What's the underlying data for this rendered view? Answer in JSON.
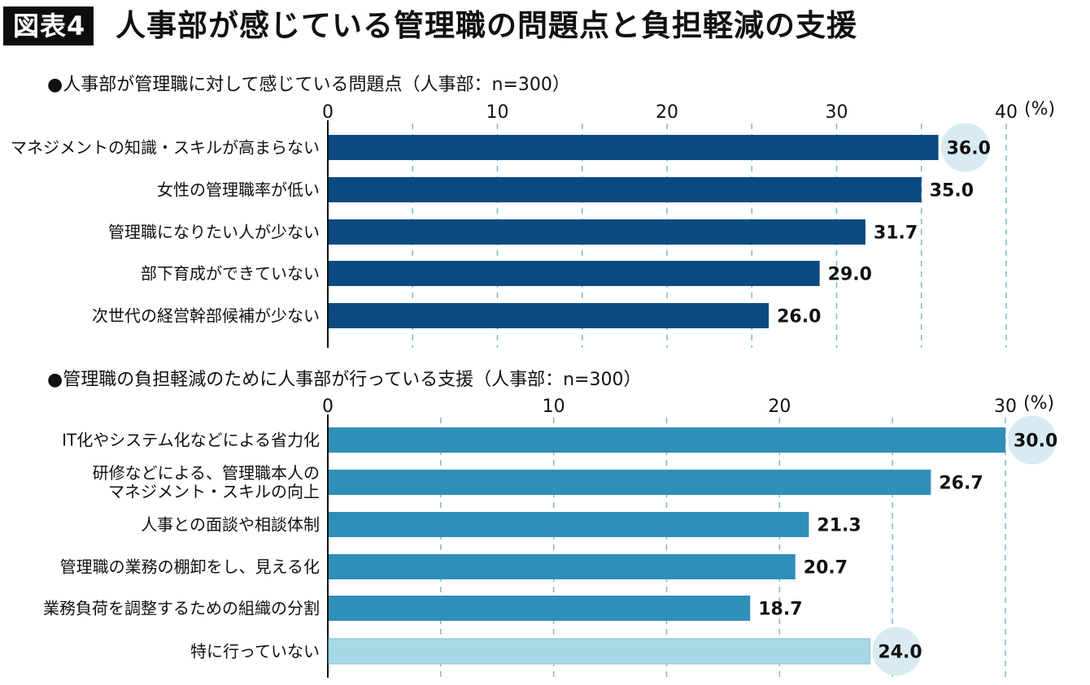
{
  "header": {
    "badge": "図表4",
    "title": "人事部が感じている管理職の問題点と負担軽減の支援"
  },
  "chart_data": [
    {
      "type": "bar",
      "orientation": "horizontal",
      "title": "●人事部が管理職に対して感じている問題点（人事部：n=300）",
      "unit": "(%)",
      "xlim": [
        0,
        40
      ],
      "ticks": [
        0,
        10,
        20,
        30,
        40
      ],
      "grid": "dashed-vertical",
      "categories": [
        [
          "マネジメントの知識・スキルが高まらない"
        ],
        [
          "女性の管理職率が低い"
        ],
        [
          "管理職になりたい人が少ない"
        ],
        [
          "部下育成ができていない"
        ],
        [
          "次世代の経営幹部候補が少ない"
        ]
      ],
      "values": [
        36.0,
        35.0,
        31.7,
        29.0,
        26.0
      ],
      "value_labels": [
        "36.0",
        "35.0",
        "31.7",
        "29.0",
        "26.0"
      ],
      "highlight_index": 0,
      "bar_color": "#0b4a80",
      "highlight_circle_color": "#d9ebf2"
    },
    {
      "type": "bar",
      "orientation": "horizontal",
      "title": "●管理職の負担軽減のために人事部が行っている支援（人事部：n=300）",
      "unit": "(%)",
      "xlim": [
        0,
        30
      ],
      "ticks": [
        0,
        10,
        20,
        30
      ],
      "grid": "dashed-vertical",
      "categories": [
        [
          "IT化やシステム化などによる省力化"
        ],
        [
          "研修などによる、管理職本人の",
          "マネジメント・スキルの向上"
        ],
        [
          "人事との面談や相談体制"
        ],
        [
          "管理職の業務の棚卸をし、見える化"
        ],
        [
          "業務負荷を調整するための組織の分割"
        ],
        [
          "特に行っていない"
        ]
      ],
      "values": [
        30.0,
        26.7,
        21.3,
        20.7,
        18.7,
        24.0
      ],
      "value_labels": [
        "30.0",
        "26.7",
        "21.3",
        "20.7",
        "18.7",
        "24.0"
      ],
      "highlight_index": [
        0,
        5
      ],
      "bar_color": "#2f8fb8",
      "last_bar_color": "#a8d8e6",
      "highlight_circle_color": "#d9ebf2"
    }
  ]
}
